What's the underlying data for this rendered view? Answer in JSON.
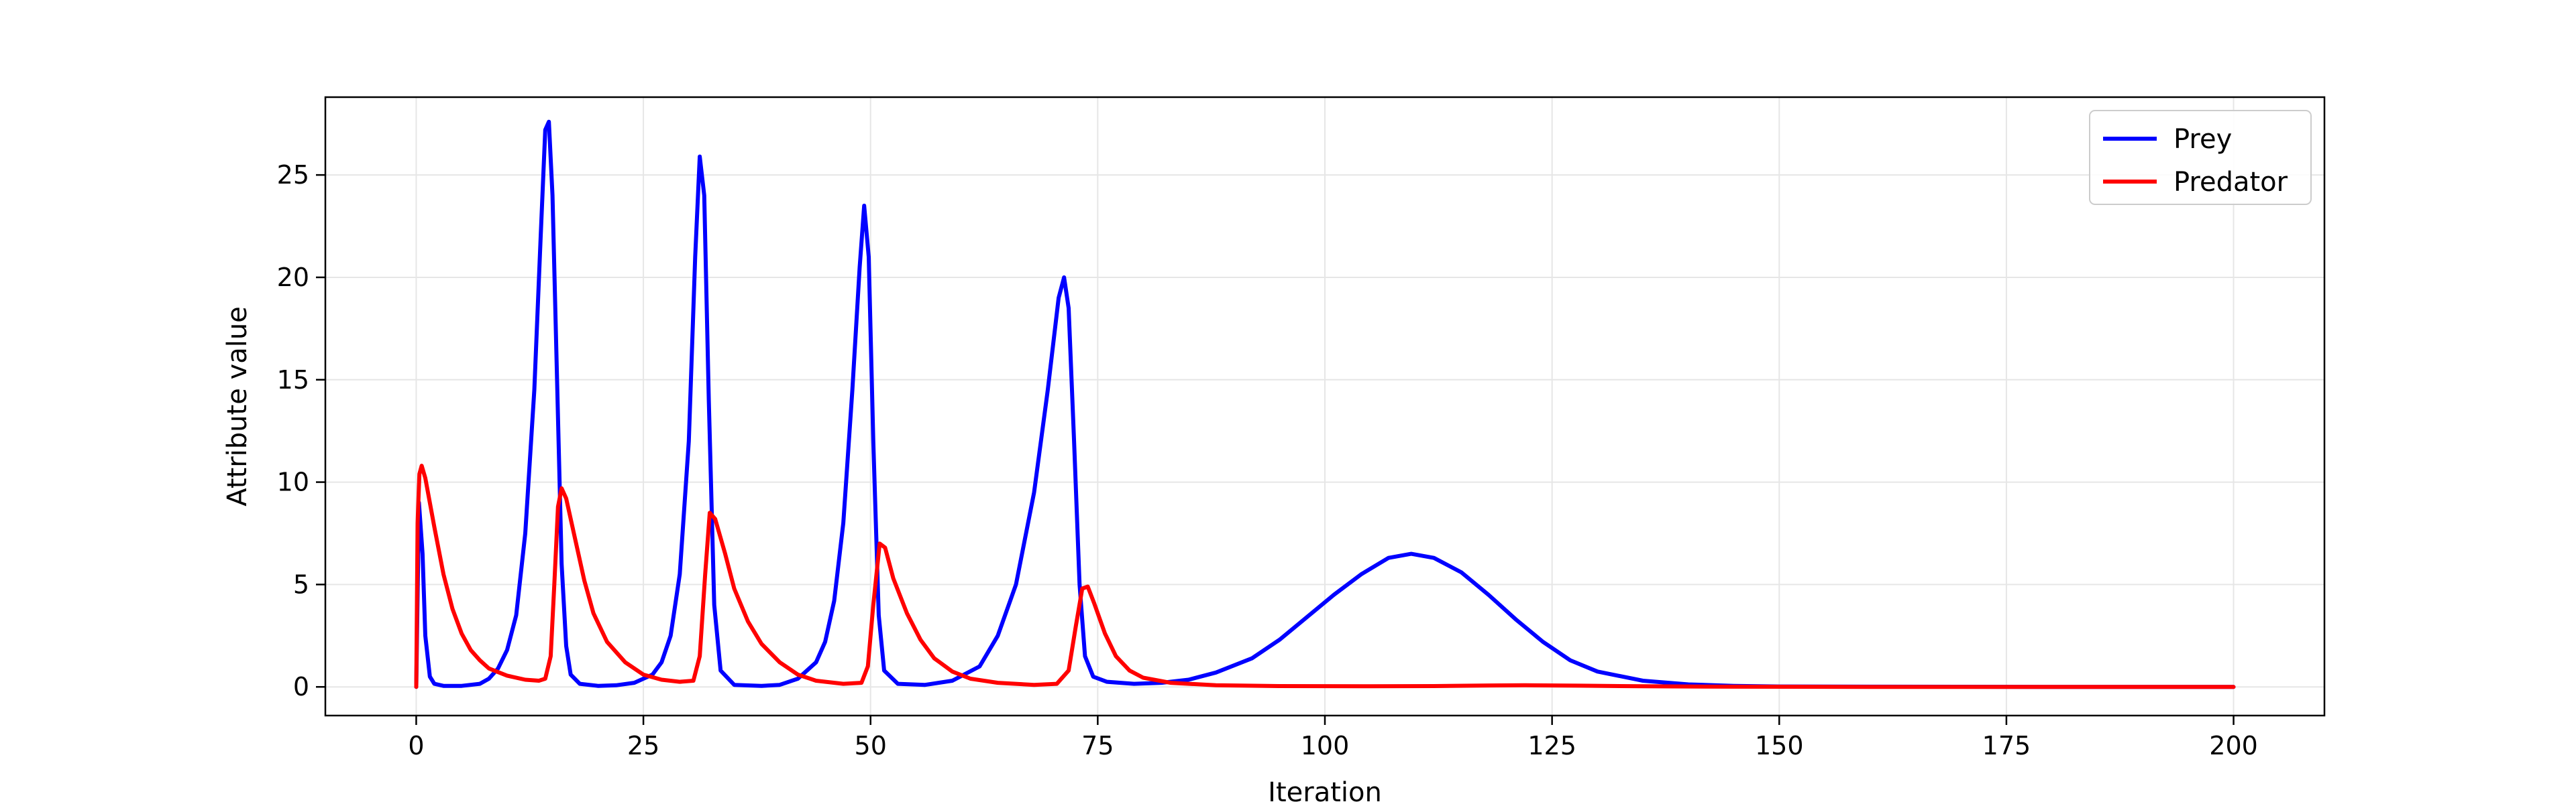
{
  "chart_data": {
    "type": "line",
    "title": "",
    "xlabel": "Iteration",
    "ylabel": "Attribute value",
    "xlim": [
      -10,
      210
    ],
    "ylim": [
      -1.4,
      28.8
    ],
    "xticks": [
      0,
      25,
      50,
      75,
      100,
      125,
      150,
      175,
      200
    ],
    "yticks": [
      0,
      5,
      10,
      15,
      20,
      25
    ],
    "grid": true,
    "legend_position": "top-right",
    "series": [
      {
        "name": "Prey",
        "color": "#0000ff",
        "points": [
          [
            0,
            0
          ],
          [
            0.3,
            9.0
          ],
          [
            0.7,
            6.5
          ],
          [
            1,
            2.5
          ],
          [
            1.5,
            0.5
          ],
          [
            2,
            0.15
          ],
          [
            3,
            0.05
          ],
          [
            5,
            0.05
          ],
          [
            7,
            0.15
          ],
          [
            8,
            0.4
          ],
          [
            9,
            0.9
          ],
          [
            10,
            1.8
          ],
          [
            11,
            3.5
          ],
          [
            12,
            7.5
          ],
          [
            13,
            14.5
          ],
          [
            13.7,
            22
          ],
          [
            14.2,
            27.2
          ],
          [
            14.6,
            27.6
          ],
          [
            15,
            24
          ],
          [
            15.5,
            15
          ],
          [
            16,
            6
          ],
          [
            16.5,
            2
          ],
          [
            17,
            0.6
          ],
          [
            18,
            0.15
          ],
          [
            20,
            0.05
          ],
          [
            22,
            0.08
          ],
          [
            24,
            0.2
          ],
          [
            26,
            0.6
          ],
          [
            27,
            1.2
          ],
          [
            28,
            2.5
          ],
          [
            29,
            5.5
          ],
          [
            30,
            12
          ],
          [
            30.7,
            21
          ],
          [
            31.2,
            25.9
          ],
          [
            31.7,
            24
          ],
          [
            32.2,
            14
          ],
          [
            32.8,
            4
          ],
          [
            33.5,
            0.8
          ],
          [
            35,
            0.1
          ],
          [
            38,
            0.05
          ],
          [
            40,
            0.1
          ],
          [
            42,
            0.4
          ],
          [
            44,
            1.2
          ],
          [
            45,
            2.2
          ],
          [
            46,
            4.2
          ],
          [
            47,
            8
          ],
          [
            48,
            14.5
          ],
          [
            48.8,
            20.5
          ],
          [
            49.3,
            23.5
          ],
          [
            49.8,
            21
          ],
          [
            50.3,
            12
          ],
          [
            50.9,
            3.5
          ],
          [
            51.5,
            0.8
          ],
          [
            53,
            0.15
          ],
          [
            56,
            0.1
          ],
          [
            59,
            0.3
          ],
          [
            62,
            1
          ],
          [
            64,
            2.5
          ],
          [
            66,
            5
          ],
          [
            68,
            9.5
          ],
          [
            69.5,
            14.5
          ],
          [
            70.7,
            19
          ],
          [
            71.3,
            20
          ],
          [
            71.8,
            18.5
          ],
          [
            72.4,
            12
          ],
          [
            73,
            5
          ],
          [
            73.6,
            1.5
          ],
          [
            74.5,
            0.5
          ],
          [
            76,
            0.25
          ],
          [
            79,
            0.15
          ],
          [
            82,
            0.2
          ],
          [
            85,
            0.35
          ],
          [
            88,
            0.7
          ],
          [
            92,
            1.4
          ],
          [
            95,
            2.3
          ],
          [
            98,
            3.4
          ],
          [
            101,
            4.5
          ],
          [
            104,
            5.5
          ],
          [
            107,
            6.3
          ],
          [
            109.5,
            6.5
          ],
          [
            112,
            6.3
          ],
          [
            115,
            5.6
          ],
          [
            118,
            4.5
          ],
          [
            121,
            3.3
          ],
          [
            124,
            2.2
          ],
          [
            127,
            1.3
          ],
          [
            130,
            0.75
          ],
          [
            135,
            0.3
          ],
          [
            140,
            0.12
          ],
          [
            145,
            0.05
          ],
          [
            150,
            0.02
          ],
          [
            160,
            0.01
          ],
          [
            180,
            0
          ],
          [
            200,
            0
          ]
        ]
      },
      {
        "name": "Predator",
        "color": "#ff0000",
        "points": [
          [
            0,
            0
          ],
          [
            0.15,
            8
          ],
          [
            0.35,
            10.4
          ],
          [
            0.6,
            10.8
          ],
          [
            1,
            10.2
          ],
          [
            2,
            7.8
          ],
          [
            3,
            5.5
          ],
          [
            4,
            3.8
          ],
          [
            5,
            2.6
          ],
          [
            6,
            1.8
          ],
          [
            7,
            1.3
          ],
          [
            8,
            0.9
          ],
          [
            10,
            0.55
          ],
          [
            12,
            0.35
          ],
          [
            13.5,
            0.3
          ],
          [
            14.2,
            0.4
          ],
          [
            14.8,
            1.5
          ],
          [
            15.2,
            5
          ],
          [
            15.6,
            8.8
          ],
          [
            16,
            9.7
          ],
          [
            16.5,
            9.2
          ],
          [
            17.5,
            7.2
          ],
          [
            18.5,
            5.2
          ],
          [
            19.5,
            3.6
          ],
          [
            21,
            2.2
          ],
          [
            23,
            1.2
          ],
          [
            25,
            0.6
          ],
          [
            27,
            0.35
          ],
          [
            29,
            0.25
          ],
          [
            30.5,
            0.3
          ],
          [
            31.2,
            1.5
          ],
          [
            31.8,
            5.5
          ],
          [
            32.3,
            8.5
          ],
          [
            32.9,
            8.2
          ],
          [
            34,
            6.5
          ],
          [
            35,
            4.8
          ],
          [
            36.5,
            3.2
          ],
          [
            38,
            2.1
          ],
          [
            40,
            1.2
          ],
          [
            42,
            0.6
          ],
          [
            44,
            0.3
          ],
          [
            47,
            0.15
          ],
          [
            49,
            0.2
          ],
          [
            49.7,
            1
          ],
          [
            50.3,
            4
          ],
          [
            51,
            7
          ],
          [
            51.6,
            6.8
          ],
          [
            52.5,
            5.3
          ],
          [
            54,
            3.6
          ],
          [
            55.5,
            2.3
          ],
          [
            57,
            1.4
          ],
          [
            59,
            0.75
          ],
          [
            61,
            0.4
          ],
          [
            64,
            0.2
          ],
          [
            68,
            0.1
          ],
          [
            70.5,
            0.15
          ],
          [
            71.8,
            0.8
          ],
          [
            72.6,
            3
          ],
          [
            73.3,
            4.8
          ],
          [
            73.9,
            4.9
          ],
          [
            74.6,
            4.1
          ],
          [
            75.8,
            2.6
          ],
          [
            77,
            1.5
          ],
          [
            78.5,
            0.8
          ],
          [
            80,
            0.45
          ],
          [
            83,
            0.2
          ],
          [
            88,
            0.08
          ],
          [
            95,
            0.04
          ],
          [
            105,
            0.03
          ],
          [
            112,
            0.04
          ],
          [
            118,
            0.07
          ],
          [
            122,
            0.08
          ],
          [
            128,
            0.06
          ],
          [
            135,
            0.03
          ],
          [
            145,
            0.01
          ],
          [
            160,
            0
          ],
          [
            200,
            0
          ]
        ]
      }
    ]
  }
}
